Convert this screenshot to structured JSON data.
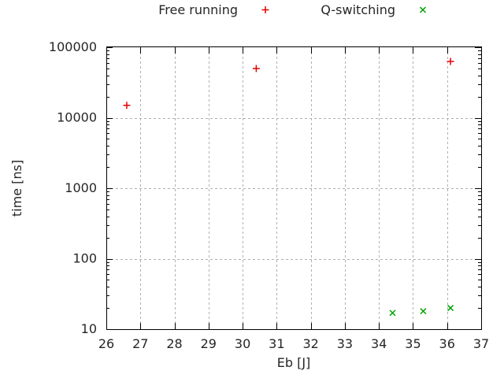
{
  "figure": {
    "background": "#ffffff"
  },
  "chart_data": {
    "type": "scatter",
    "title": "",
    "xlabel": "Eb [J]",
    "ylabel": "time [ns]",
    "x_scale": "linear",
    "y_scale": "log",
    "xlim": [
      26,
      37
    ],
    "ylim": [
      10,
      100000
    ],
    "x_ticks": [
      26,
      27,
      28,
      29,
      30,
      31,
      32,
      33,
      34,
      35,
      36,
      37
    ],
    "y_ticks": [
      10,
      100,
      1000,
      10000,
      100000
    ],
    "y_tick_labels": [
      "10",
      "100",
      "1000",
      "10000",
      "100000"
    ],
    "grid": true,
    "grid_style": "dashed",
    "legend_position": "top-center-outside",
    "series": [
      {
        "name": "Free running",
        "marker": "plus",
        "color": "#e60000",
        "points": [
          [
            26.6,
            15000
          ],
          [
            30.4,
            50000
          ],
          [
            36.1,
            63000
          ]
        ]
      },
      {
        "name": "Q-switching",
        "marker": "cross",
        "color": "#00a000",
        "points": [
          [
            34.4,
            17
          ],
          [
            35.3,
            18
          ],
          [
            36.1,
            20
          ]
        ]
      }
    ],
    "colors": {
      "axis": "#000000",
      "grid": "#b0b0b0",
      "text": "#262626"
    }
  }
}
